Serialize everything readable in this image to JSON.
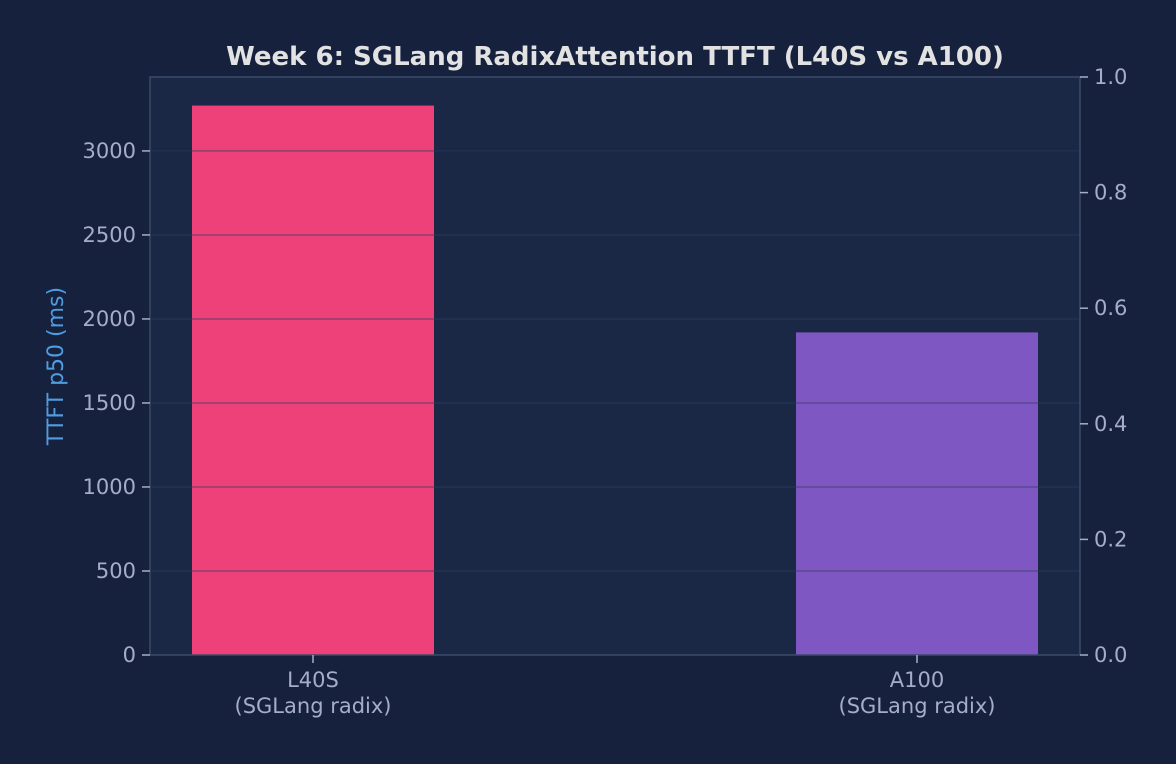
{
  "chart_data": {
    "type": "bar",
    "title": "Week 6: SGLang RadixAttention TTFT (L40S vs A100)",
    "xlabel": "",
    "ylabel": "TTFT p50 (ms)",
    "categories": [
      {
        "line1": "L40S",
        "line2": "(SGLang radix)"
      },
      {
        "line1": "A100",
        "line2": "(SGLang radix)"
      }
    ],
    "values": [
      3270,
      1920
    ],
    "bar_colors": [
      "#ee417a",
      "#7e57c2"
    ],
    "ylim": [
      0,
      3440
    ],
    "yticks": [
      0,
      500,
      1000,
      1500,
      2000,
      2500,
      3000
    ],
    "ytick_labels": [
      "0",
      "500",
      "1000",
      "1500",
      "2000",
      "2500",
      "3000"
    ],
    "y2lim": [
      0,
      1
    ],
    "y2ticks": [
      0,
      0.2,
      0.4,
      0.6,
      0.8,
      1.0
    ],
    "y2tick_labels": [
      "0.0",
      "0.2",
      "0.4",
      "0.6",
      "0.8",
      "1.0"
    ],
    "grid": true,
    "colors": {
      "background": "#16213e",
      "plot_background": "#1b2845",
      "axis": "#3b4a6b",
      "tick_text": "#a6adc8",
      "title_text": "#e2e2e2",
      "ylabel_text": "#4d9de0"
    }
  }
}
